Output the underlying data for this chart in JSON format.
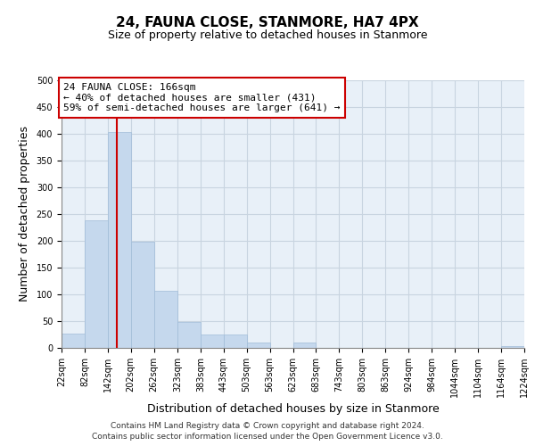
{
  "title": "24, FAUNA CLOSE, STANMORE, HA7 4PX",
  "subtitle": "Size of property relative to detached houses in Stanmore",
  "xlabel": "Distribution of detached houses by size in Stanmore",
  "ylabel": "Number of detached properties",
  "bin_edges": [
    22,
    82,
    142,
    202,
    262,
    323,
    383,
    443,
    503,
    563,
    623,
    683,
    743,
    803,
    863,
    924,
    984,
    1044,
    1104,
    1164,
    1224
  ],
  "bin_labels": [
    "22sqm",
    "82sqm",
    "142sqm",
    "202sqm",
    "262sqm",
    "323sqm",
    "383sqm",
    "443sqm",
    "503sqm",
    "563sqm",
    "623sqm",
    "683sqm",
    "743sqm",
    "803sqm",
    "863sqm",
    "924sqm",
    "984sqm",
    "1044sqm",
    "1104sqm",
    "1164sqm",
    "1224sqm"
  ],
  "bar_heights": [
    27,
    238,
    403,
    199,
    106,
    48,
    25,
    25,
    10,
    0,
    10,
    0,
    0,
    0,
    0,
    0,
    0,
    0,
    0,
    3
  ],
  "bar_color": "#c5d8ed",
  "bar_edge_color": "#a0bcd8",
  "plot_bg_color": "#e8f0f8",
  "property_line_x": 166,
  "property_line_color": "#cc0000",
  "annotation_line1": "24 FAUNA CLOSE: 166sqm",
  "annotation_line2": "← 40% of detached houses are smaller (431)",
  "annotation_line3": "59% of semi-detached houses are larger (641) →",
  "annotation_box_color": "#ffffff",
  "annotation_box_edge": "#cc0000",
  "ylim": [
    0,
    500
  ],
  "yticks": [
    0,
    50,
    100,
    150,
    200,
    250,
    300,
    350,
    400,
    450,
    500
  ],
  "footer_line1": "Contains HM Land Registry data © Crown copyright and database right 2024.",
  "footer_line2": "Contains public sector information licensed under the Open Government Licence v3.0.",
  "background_color": "#ffffff",
  "grid_color": "#c8d4e0",
  "title_fontsize": 11,
  "subtitle_fontsize": 9,
  "tick_fontsize": 7,
  "label_fontsize": 9,
  "annot_fontsize": 8,
  "footer_fontsize": 6.5
}
